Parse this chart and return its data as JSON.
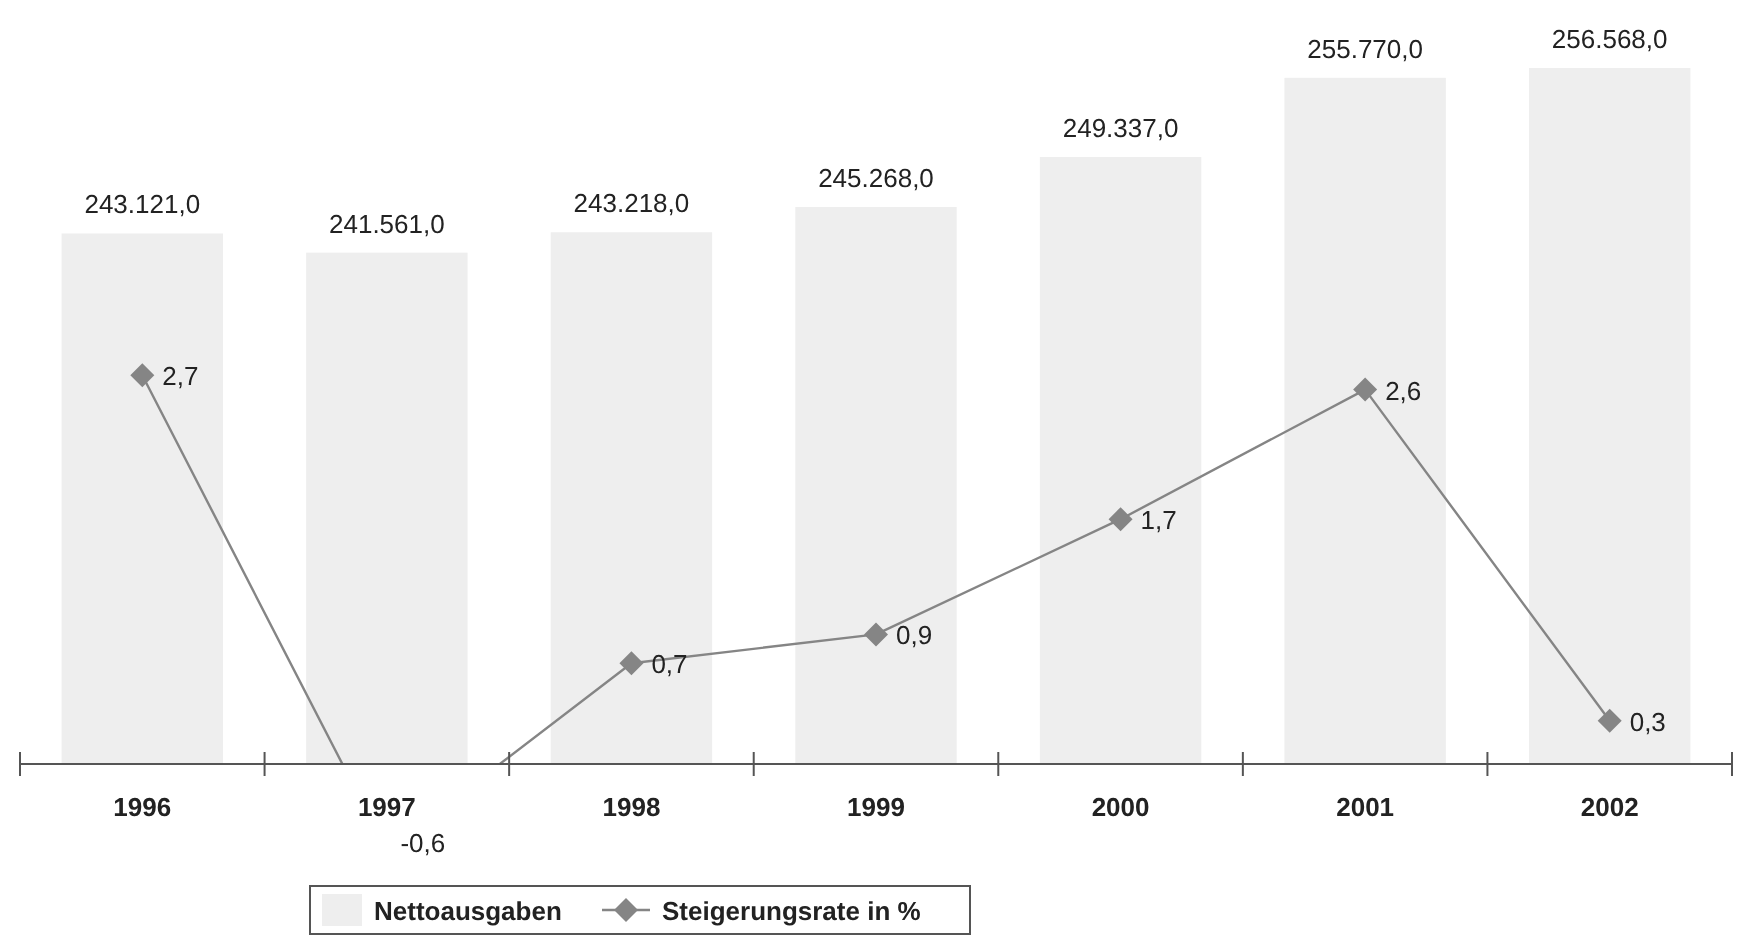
{
  "chart_data": {
    "type": "bar",
    "categories": [
      "1996",
      "1997",
      "1998",
      "1999",
      "2000",
      "2001",
      "2002"
    ],
    "ylim": [
      200000,
      256568
    ],
    "tick_labels": "x",
    "legend": "bottom",
    "series": [
      {
        "name": "Nettoausgaben",
        "color": "#eeeeee",
        "values": [
          243121,
          241561,
          243218,
          245268,
          249337,
          255770,
          256568
        ],
        "value_labels": [
          "243.121,0",
          "241.561,0",
          "243.218,0",
          "245.268,0",
          "249.337,0",
          "255.770,0",
          "256.568,0"
        ]
      },
      {
        "name": "Steigerungsrate in %",
        "type": "line",
        "axis": "y2",
        "color": "#858585",
        "marker": "diamond",
        "values": [
          2.7,
          -0.6,
          0.7,
          0.9,
          1.7,
          2.6,
          0.3
        ],
        "value_labels": [
          "2,7",
          "-0,6",
          "0,7",
          "0,9",
          "1,7",
          "2,6",
          "0,3"
        ]
      }
    ]
  }
}
